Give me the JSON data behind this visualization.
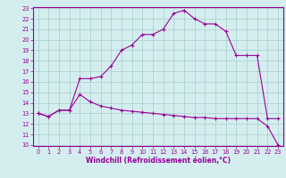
{
  "xlabel": "Windchill (Refroidissement éolien,°C)",
  "line1_x": [
    0,
    1,
    2,
    3,
    4,
    5,
    6,
    7,
    8,
    9,
    10,
    11,
    12,
    13,
    14,
    15,
    16,
    17,
    18,
    19,
    20,
    21,
    22,
    23
  ],
  "line1_y": [
    13.0,
    12.7,
    13.3,
    13.3,
    16.3,
    16.3,
    16.5,
    17.5,
    19.0,
    19.5,
    20.5,
    20.5,
    21.0,
    22.5,
    22.8,
    22.0,
    21.5,
    21.5,
    20.8,
    18.5,
    18.5,
    18.5,
    12.5,
    12.5
  ],
  "line2_x": [
    0,
    1,
    2,
    3,
    4,
    5,
    6,
    7,
    8,
    9,
    10,
    11,
    12,
    13,
    14,
    15,
    16,
    17,
    18,
    19,
    20,
    21,
    22,
    23
  ],
  "line2_y": [
    13.0,
    12.7,
    13.3,
    13.3,
    14.8,
    14.1,
    13.7,
    13.5,
    13.3,
    13.2,
    13.1,
    13.0,
    12.9,
    12.8,
    12.7,
    12.6,
    12.6,
    12.5,
    12.5,
    12.5,
    12.5,
    12.5,
    11.8,
    10.0
  ],
  "line_color": "#990099",
  "bg_color": "#d4eef0",
  "grid_color": "#aacccc",
  "tick_color": "#990099",
  "ylim": [
    10,
    23
  ],
  "xlim": [
    -0.5,
    23.5
  ],
  "yticks": [
    10,
    11,
    12,
    13,
    14,
    15,
    16,
    17,
    18,
    19,
    20,
    21,
    22,
    23
  ],
  "xticks": [
    0,
    1,
    2,
    3,
    4,
    5,
    6,
    7,
    8,
    9,
    10,
    11,
    12,
    13,
    14,
    15,
    16,
    17,
    18,
    19,
    20,
    21,
    22,
    23
  ],
  "label_fontsize": 5.0,
  "tick_fontsize": 4.8,
  "xlabel_fontsize": 5.5
}
